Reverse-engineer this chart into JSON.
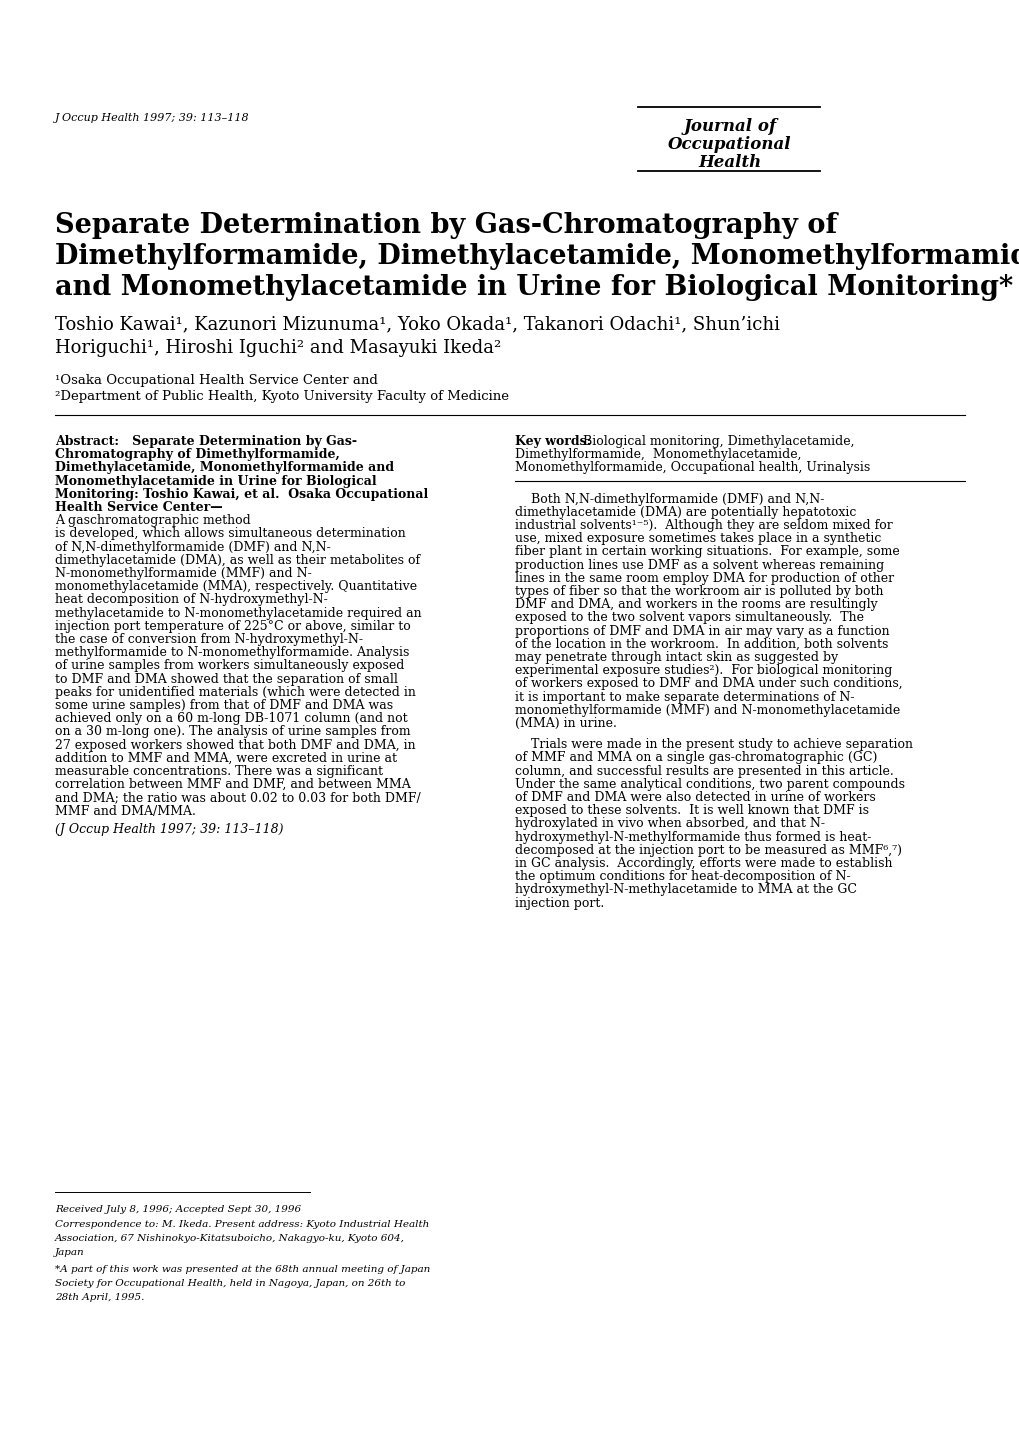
{
  "bg": "#ffffff",
  "journal_ref": "J Occup Health 1997; 39: 113–118",
  "journal_name": [
    "Journal of",
    "Occupational",
    "Health"
  ],
  "title": [
    "Separate Determination by Gas-Chromatography of",
    "Dimethylformamide, Dimethylacetamide, Monomethylformamide",
    "and Monomethylacetamide in Urine for Biological Monitoring*"
  ],
  "author_line1": "Toshio Kawai¹, Kazunori Mizunuma¹, Yoko Okada¹, Takanori Odachi¹, Shun’ichi",
  "author_line2": "Horiguchi¹, Hiroshi Iguchi² and Masayuki Ikeda²",
  "affil1": "¹Osaka Occupational Health Service Center and",
  "affil2": "²Department of Public Health, Kyoto University Faculty of Medicine",
  "abstract_bold_lines": [
    "Abstract:   Separate Determination by Gas-",
    "Chromatography of Dimethylformamide,",
    "Dimethylacetamide, Monomethylformamide and",
    "Monomethylacetamide in Urine for Biological",
    "Monitoring: Toshio Kawai, et al.  Osaka Occupational",
    "Health Service Center—"
  ],
  "abstract_normal_lines": [
    "A gaschromatographic method",
    "is developed, which allows simultaneous determination",
    "of N,N-dimethylformamide (DMF) and N,N-",
    "dimethylacetamide (DMA), as well as their metabolites of",
    "N-monomethylformamide (MMF) and N-",
    "monomethylacetamide (MMA), respectively. Quantitative",
    "heat decomposition of N-hydroxymethyl-N-",
    "methylacetamide to N-monomethylacetamide required an",
    "injection port temperature of 225°C or above, similar to",
    "the case of conversion from N-hydroxymethyl-N-",
    "methylformamide to N-monomethylformamide. Analysis",
    "of urine samples from workers simultaneously exposed",
    "to DMF and DMA showed that the separation of small",
    "peaks for unidentified materials (which were detected in",
    "some urine samples) from that of DMF and DMA was",
    "achieved only on a 60 m-long DB-1071 column (and not",
    "on a 30 m-long one). The analysis of urine samples from",
    "27 exposed workers showed that both DMF and DMA, in",
    "addition to MMF and MMA, were excreted in urine at",
    "measurable concentrations. There was a significant",
    "correlation between MMF and DMF, and between MMA",
    "and DMA; the ratio was about 0.02 to 0.03 for both DMF/",
    "MMF and DMA/MMA."
  ],
  "abstract_citation": "(J Occup Health 1997; 39: 113–118)",
  "kw_bold": "Key words:",
  "kw_lines": [
    " Biological monitoring, Dimethylacetamide,",
    "Dimethylformamide,  Monomethylacetamide,",
    "Monomethylformamide, Occupational health, Urinalysis"
  ],
  "rp1_lines": [
    "    Both N,N-dimethylformamide (DMF) and N,N-",
    "dimethylacetamide (DMA) are potentially hepatotoxic",
    "industrial solvents¹⁻⁵).  Although they are seldom mixed for",
    "use, mixed exposure sometimes takes place in a synthetic",
    "fiber plant in certain working situations.  For example, some",
    "production lines use DMF as a solvent whereas remaining",
    "lines in the same room employ DMA for production of other",
    "types of fiber so that the workroom air is polluted by both",
    "DMF and DMA, and workers in the rooms are resultingly",
    "exposed to the two solvent vapors simultaneously.  The",
    "proportions of DMF and DMA in air may vary as a function",
    "of the location in the workroom.  In addition, both solvents",
    "may penetrate through intact skin as suggested by",
    "experimental exposure studies²).  For biological monitoring",
    "of workers exposed to DMF and DMA under such conditions,",
    "it is important to make separate determinations of N-",
    "monomethylformamide (MMF) and N-monomethylacetamide",
    "(MMA) in urine."
  ],
  "rp2_lines": [
    "    Trials were made in the present study to achieve separation",
    "of MMF and MMA on a single gas-chromatographic (GC)",
    "column, and successful results are presented in this article.",
    "Under the same analytical conditions, two parent compounds",
    "of DMF and DMA were also detected in urine of workers",
    "exposed to these solvents.  It is well known that DMF is",
    "hydroxylated in vivo when absorbed, and that N-",
    "hydroxymethyl-N-methylformamide thus formed is heat-",
    "decomposed at the injection port to be measured as MMF⁶,⁷)",
    "in GC analysis.  Accordingly, efforts were made to establish",
    "the optimum conditions for heat-decomposition of N-",
    "hydroxymethyl-N-methylacetamide to MMA at the GC",
    "injection port."
  ],
  "footer_lines": [
    "Received July 8, 1996; Accepted Sept 30, 1996",
    "Correspondence to: M. Ikeda. Present address: Kyoto Industrial Health",
    "Association, 67 Nishinokyo-Kitatsuboicho, Nakagyo-ku, Kyoto 604,",
    "Japan",
    "*A part of this work was presented at the 68th annual meeting of Japan",
    "Society for Occupational Health, held in Nagoya, Japan, on 26th to",
    "28th April, 1995."
  ],
  "L": 55,
  "R": 965,
  "C2x": 515,
  "lh": 13.2
}
